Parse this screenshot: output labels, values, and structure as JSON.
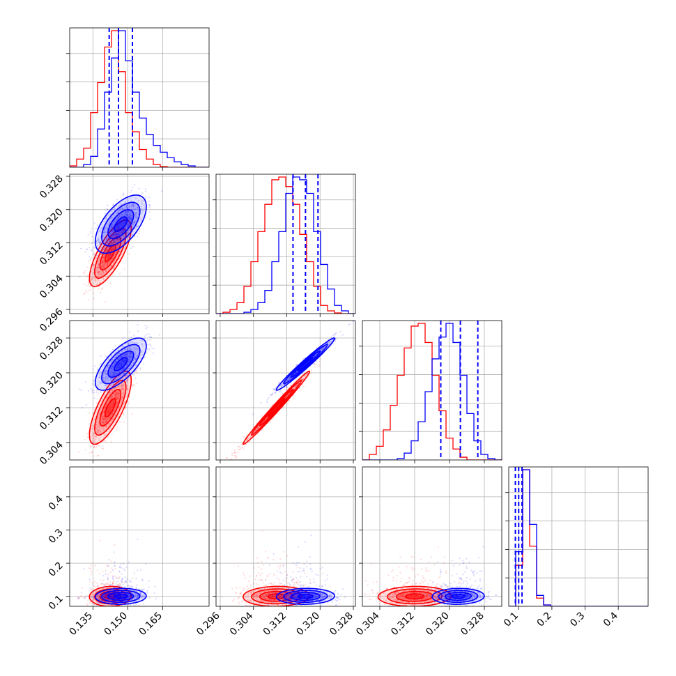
{
  "chart_data": {
    "type": "corner",
    "params": [
      {
        "range": [
          0.125,
          0.185
        ],
        "ticks": [
          0.135,
          0.15,
          0.165
        ],
        "labels": [
          "0.135",
          "0.150",
          "0.165"
        ]
      },
      {
        "range": [
          0.295,
          0.3285
        ],
        "ticks": [
          0.296,
          0.304,
          0.312,
          0.32,
          0.328
        ],
        "labels": [
          "0.296",
          "0.304",
          "0.312",
          "0.320",
          "0.328"
        ]
      },
      {
        "range": [
          0.3,
          0.332
        ],
        "ticks": [
          0.304,
          0.312,
          0.32,
          0.328
        ],
        "labels": [
          "0.304",
          "0.312",
          "0.320",
          "0.328"
        ]
      },
      {
        "range": [
          0.07,
          0.49
        ],
        "ticks": [
          0.1,
          0.2,
          0.3,
          0.4
        ],
        "labels": [
          "0.1",
          "0.2",
          "0.3",
          "0.4"
        ]
      }
    ],
    "series": [
      {
        "color": "#ff0000",
        "mean": [
          0.1425,
          0.3095,
          0.312,
          0.1
        ],
        "sd": [
          0.0045,
          0.004,
          0.0042,
          0.015
        ],
        "corr": [
          [
            1,
            0.75,
            0.75,
            0.05
          ],
          [
            0.75,
            1,
            0.99,
            0.05
          ],
          [
            0.75,
            0.99,
            1,
            0.05
          ],
          [
            0.05,
            0.05,
            0.05,
            1
          ]
        ],
        "hist": [
          [
            0.01,
            0.06,
            0.14,
            0.4,
            0.62,
            0.88,
            1.0,
            0.7,
            0.4,
            0.26,
            0.13,
            0.06,
            0.02,
            0.005,
            0,
            0,
            0,
            0,
            0,
            0
          ],
          [
            0,
            0.01,
            0.03,
            0.08,
            0.2,
            0.38,
            0.6,
            0.8,
            0.98,
            1.0,
            0.93,
            0.8,
            0.58,
            0.38,
            0.2,
            0.06,
            0.02,
            0.005,
            0,
            0
          ],
          [
            0,
            0.04,
            0.1,
            0.22,
            0.4,
            0.62,
            0.82,
            0.98,
            1.0,
            0.86,
            0.62,
            0.36,
            0.16,
            0.08,
            0.02,
            0,
            0,
            0,
            0,
            0
          ],
          [
            0,
            0.3,
            1.0,
            0.44,
            0.06,
            0.01,
            0,
            0,
            0,
            0,
            0,
            0,
            0,
            0,
            0,
            0,
            0,
            0,
            0,
            0
          ]
        ]
      },
      {
        "color": "#0000ff",
        "mean": [
          0.147,
          0.3165,
          0.322,
          0.1
        ],
        "sd": [
          0.0055,
          0.0035,
          0.003,
          0.012
        ],
        "corr": [
          [
            1,
            0.6,
            0.7,
            0.05
          ],
          [
            0.6,
            1,
            0.98,
            0.05
          ],
          [
            0.7,
            0.98,
            1,
            0.05
          ],
          [
            0.05,
            0.05,
            0.05,
            1
          ]
        ],
        "hist": [
          [
            0,
            0,
            0.02,
            0.08,
            0.28,
            0.55,
            0.8,
            1.0,
            0.78,
            0.55,
            0.36,
            0.24,
            0.16,
            0.11,
            0.07,
            0.04,
            0.02,
            0.01,
            0,
            0
          ],
          [
            0,
            0,
            0,
            0,
            0.01,
            0.03,
            0.08,
            0.17,
            0.38,
            0.6,
            0.88,
            1.0,
            0.98,
            0.88,
            0.6,
            0.36,
            0.18,
            0.06,
            0.02,
            0
          ],
          [
            0,
            0,
            0,
            0,
            0,
            0.01,
            0.05,
            0.14,
            0.28,
            0.5,
            0.74,
            0.9,
            1.0,
            0.86,
            0.62,
            0.34,
            0.14,
            0.04,
            0.01,
            0
          ],
          [
            0,
            0.4,
            1.0,
            0.6,
            0.08,
            0.01,
            0,
            0,
            0,
            0,
            0,
            0,
            0,
            0,
            0,
            0,
            0,
            0,
            0,
            0
          ]
        ]
      }
    ],
    "quantiles": [
      [
        0.142,
        0.146,
        0.152
      ],
      [
        0.3135,
        0.3165,
        0.3195
      ],
      [
        0.318,
        0.3225,
        0.3265
      ],
      [
        0.09,
        0.1,
        0.11
      ]
    ],
    "quantile_color": "#0000ff",
    "grid": true,
    "title": "",
    "xlabel": "",
    "ylabel": ""
  }
}
